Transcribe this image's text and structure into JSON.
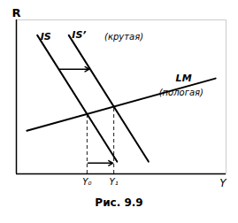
{
  "chart_data": {
    "type": "line",
    "title": "Рис. 9.9",
    "xlabel": "Y",
    "ylabel": "R",
    "xlim": [
      0,
      10
    ],
    "ylim": [
      0,
      10
    ],
    "tick_labels": false,
    "color": "#000000",
    "series": [
      {
        "x": [
          1.0,
          4.8
        ],
        "values": [
          9.0,
          0.8
        ]
      },
      {
        "x": [
          2.5,
          6.3
        ],
        "values": [
          9.0,
          0.8
        ]
      },
      {
        "x": [
          0.5,
          9.5
        ],
        "values": [
          2.8,
          6.2
        ]
      }
    ],
    "curve_labels": [
      {
        "text": "IS",
        "x": 1.15,
        "y": 8.9
      },
      {
        "text": "IS’",
        "x": 2.65,
        "y": 9.0
      },
      {
        "text": "LM",
        "x": 7.6,
        "y": 6.2
      }
    ],
    "notes": [
      {
        "text": "(крутая)",
        "x": 4.2,
        "y": 9.1
      },
      {
        "text": "(пологая)",
        "x": 6.8,
        "y": 5.5
      }
    ],
    "equilibria": [
      {
        "label": "Y₀",
        "x": 3.370618,
        "y": 3.884456
      },
      {
        "label": "Y₁",
        "x": 4.647137,
        "y": 4.366696
      }
    ],
    "arrows": [
      {
        "x": [
          2.019512,
          3.519512
        ],
        "y": [
          6.8,
          6.8
        ]
      },
      {
        "x": [
          3.370618,
          4.647137
        ],
        "y": [
          0.7,
          0.7
        ]
      }
    ]
  }
}
